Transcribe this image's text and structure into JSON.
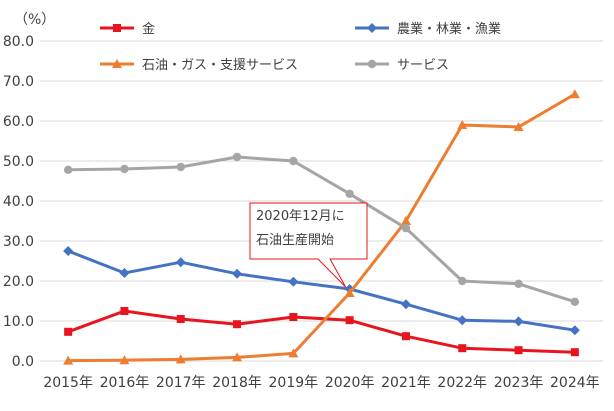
{
  "chart_data": {
    "type": "line",
    "y_unit": "（%）",
    "categories": [
      "2015年",
      "2016年",
      "2017年",
      "2018年",
      "2019年",
      "2020年",
      "2021年",
      "2022年",
      "2023年",
      "2024年"
    ],
    "ylim": [
      0,
      80
    ],
    "yticks": [
      "0.0",
      "10.0",
      "20.0",
      "30.0",
      "40.0",
      "50.0",
      "60.0",
      "70.0",
      "80.0"
    ],
    "grid": "horizontal",
    "legend_position": "top",
    "series": [
      {
        "name": "金",
        "color": "#E8141E",
        "marker": "square",
        "values": [
          7.3,
          12.5,
          10.5,
          9.2,
          11.0,
          10.2,
          6.2,
          3.2,
          2.7,
          2.2
        ]
      },
      {
        "name": "農業・林業・漁業",
        "color": "#4472C4",
        "marker": "diamond",
        "values": [
          27.5,
          22.0,
          24.7,
          21.8,
          19.8,
          18.0,
          14.2,
          10.2,
          9.9,
          7.7
        ]
      },
      {
        "name": "石油・ガス・支援サービス",
        "color": "#ED7D31",
        "marker": "triangle",
        "values": [
          0.1,
          0.2,
          0.4,
          0.9,
          1.9,
          17.0,
          35.0,
          59.0,
          58.5,
          66.7
        ]
      },
      {
        "name": "サービス",
        "color": "#A5A5A5",
        "marker": "circle",
        "values": [
          47.8,
          48.0,
          48.5,
          51.0,
          50.0,
          41.8,
          33.2,
          20.0,
          19.3,
          14.8
        ]
      }
    ],
    "annotations": [
      {
        "lines": [
          "2020年12月に",
          "石油生産開始"
        ],
        "points_to": "2020年"
      }
    ]
  }
}
